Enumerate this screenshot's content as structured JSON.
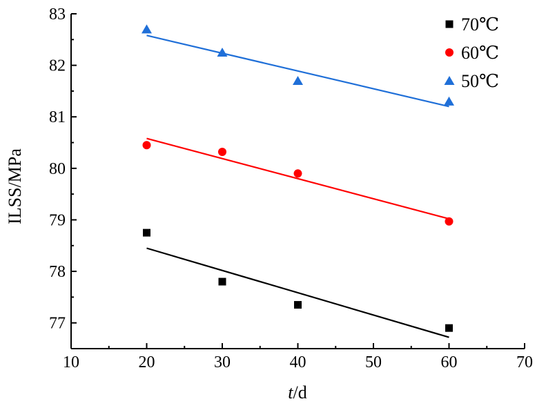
{
  "chart_data": {
    "type": "scatter",
    "xlabel_italic": "t",
    "xlabel_unit": "/d",
    "ylabel": "ILSS/MPa",
    "xlim": [
      10,
      70
    ],
    "ylim": [
      76.5,
      83
    ],
    "x_ticks": [
      10,
      20,
      30,
      40,
      50,
      60,
      70
    ],
    "y_ticks": [
      77,
      78,
      79,
      80,
      81,
      82,
      83
    ],
    "grid": false,
    "legend_position": "top-right",
    "series": [
      {
        "name": "70℃",
        "marker": "square",
        "color": "#000000",
        "x": [
          20,
          30,
          40,
          60
        ],
        "y": [
          78.75,
          77.8,
          77.35,
          76.9
        ],
        "fit": {
          "x": [
            20,
            60
          ],
          "y": [
            78.45,
            76.72
          ]
        }
      },
      {
        "name": "60℃",
        "marker": "circle",
        "color": "#ff0000",
        "x": [
          20,
          30,
          40,
          60
        ],
        "y": [
          80.45,
          80.32,
          79.9,
          78.97
        ],
        "fit": {
          "x": [
            20,
            60
          ],
          "y": [
            80.58,
            79.02
          ]
        }
      },
      {
        "name": "50℃",
        "marker": "triangle",
        "color": "#1f6fd8",
        "x": [
          20,
          30,
          40,
          60
        ],
        "y": [
          82.7,
          82.25,
          81.7,
          81.3
        ],
        "fit": {
          "x": [
            20,
            60
          ],
          "y": [
            82.58,
            81.2
          ]
        }
      }
    ]
  }
}
